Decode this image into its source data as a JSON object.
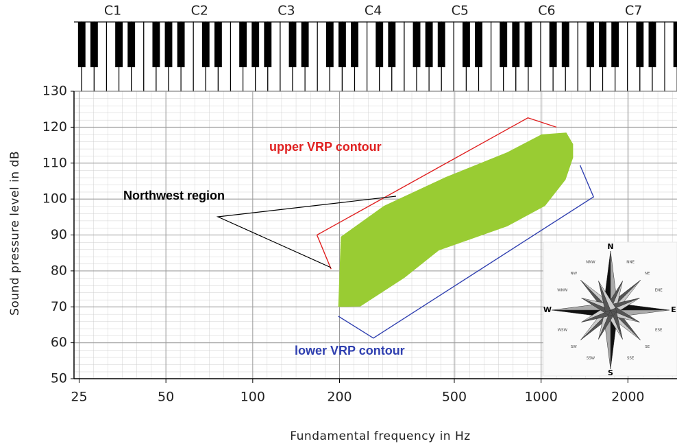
{
  "chart_data": {
    "type": "line",
    "x_label": "Fundamental frequency in Hz",
    "y_label": "Sound pressure level in dB",
    "x_scale": "log",
    "xlim": [
      24,
      2960
    ],
    "ylim": [
      50,
      130
    ],
    "xticks": [
      25,
      50,
      100,
      200,
      500,
      1000,
      2000
    ],
    "yticks": [
      50,
      60,
      70,
      80,
      90,
      100,
      110,
      120,
      130
    ],
    "grid": true,
    "note_ticks": [
      {
        "value": 32.7,
        "label": "C1"
      },
      {
        "value": 65.41,
        "label": "C2"
      },
      {
        "value": 130.81,
        "label": "C3"
      },
      {
        "value": 261.63,
        "label": "C4"
      },
      {
        "value": 523.25,
        "label": "C5"
      },
      {
        "value": 1046.5,
        "label": "C6"
      },
      {
        "value": 2093,
        "label": "C7"
      }
    ],
    "series": [
      {
        "name": "upper VRP contour",
        "color": "#e02020",
        "x": [
          187,
          167,
          900,
          1130
        ],
        "values": [
          80.5,
          90,
          122.6,
          120
        ]
      },
      {
        "name": "lower VRP contour",
        "color": "#3040b0",
        "x": [
          198,
          262,
          1520,
          1365
        ],
        "values": [
          67.4,
          61.3,
          100.6,
          109.4
        ]
      }
    ],
    "region": {
      "color": "#99cc33",
      "x": [
        198,
        202,
        285,
        467,
        763,
        1004,
        1223,
        1291,
        1291,
        1216,
        1032,
        763,
        442,
        336,
        236
      ],
      "values": [
        70,
        89.5,
        98.1,
        106.1,
        113,
        118,
        118.5,
        115.3,
        111.5,
        105.4,
        98.1,
        92.4,
        85.7,
        78.1,
        70.1
      ]
    },
    "annotation": "Northwest region"
  },
  "compass_labels": [
    "N",
    "NNE",
    "NE",
    "ENE",
    "E",
    "ESE",
    "SE",
    "SSE",
    "S",
    "SSW",
    "SW",
    "WSW",
    "W",
    "WNW",
    "NW",
    "NNW"
  ]
}
